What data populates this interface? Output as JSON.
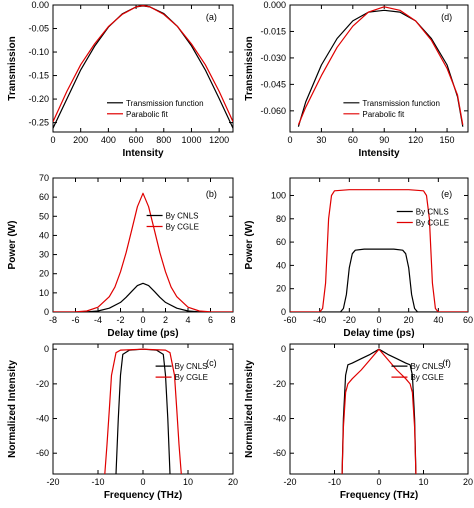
{
  "chart_data": [
    {
      "panel": "(a)",
      "type": "line",
      "xlabel": "Intensity",
      "ylabel": "Transmission",
      "xlim": [
        0,
        1300
      ],
      "ylim": [
        -0.27,
        0.0
      ],
      "xticks": [
        0,
        200,
        400,
        600,
        800,
        1000,
        1200
      ],
      "xtick_labels": [
        "0",
        "200",
        "400",
        "600",
        "800",
        "1000",
        "1200"
      ],
      "yticks": [
        0.0,
        -0.05,
        -0.1,
        -0.15,
        -0.2,
        -0.25
      ],
      "ytick_labels": [
        "0.00",
        "-0.05",
        "-0.10",
        "-0.15",
        "-0.20",
        "-0.25"
      ],
      "legend_position": "lower-center",
      "series": [
        {
          "name": "Transmission function",
          "color": "#000000",
          "x": [
            0,
            100,
            200,
            300,
            400,
            500,
            600,
            650,
            700,
            800,
            900,
            1000,
            1100,
            1200,
            1300
          ],
          "y": [
            -0.262,
            -0.2,
            -0.138,
            -0.088,
            -0.047,
            -0.019,
            -0.004,
            -0.002,
            -0.004,
            -0.018,
            -0.046,
            -0.087,
            -0.138,
            -0.199,
            -0.262
          ]
        },
        {
          "name": "Parabolic fit",
          "color": "#e00000",
          "x": [
            0,
            100,
            200,
            300,
            400,
            500,
            600,
            650,
            700,
            800,
            900,
            1000,
            1100,
            1200,
            1300
          ],
          "y": [
            -0.248,
            -0.184,
            -0.127,
            -0.083,
            -0.046,
            -0.02,
            -0.004,
            -0.001,
            -0.004,
            -0.02,
            -0.046,
            -0.083,
            -0.127,
            -0.184,
            -0.248
          ]
        }
      ]
    },
    {
      "panel": "(d)",
      "type": "line",
      "xlabel": "Intensity",
      "ylabel": "Transmission",
      "xlim": [
        0,
        170
      ],
      "ylim": [
        -0.072,
        0.0
      ],
      "xticks": [
        0,
        30,
        60,
        90,
        120,
        150
      ],
      "xtick_labels": [
        "0",
        "30",
        "60",
        "90",
        "120",
        "150"
      ],
      "yticks": [
        0.0,
        -0.015,
        -0.03,
        -0.045,
        -0.06
      ],
      "ytick_labels": [
        "0.000",
        "-0.015",
        "-0.030",
        "-0.045",
        "-0.060"
      ],
      "legend_position": "lower-center",
      "series": [
        {
          "name": "Transmission function",
          "color": "#000000",
          "x": [
            8,
            15,
            30,
            45,
            60,
            75,
            90,
            105,
            120,
            135,
            150,
            160,
            165
          ],
          "y": [
            -0.069,
            -0.055,
            -0.034,
            -0.019,
            -0.009,
            -0.004,
            -0.003,
            -0.004,
            -0.009,
            -0.019,
            -0.034,
            -0.052,
            -0.069
          ]
        },
        {
          "name": "Parabolic fit",
          "color": "#e00000",
          "x": [
            8,
            15,
            30,
            45,
            60,
            75,
            90,
            105,
            120,
            135,
            150,
            160,
            165
          ],
          "y": [
            -0.068,
            -0.058,
            -0.04,
            -0.024,
            -0.012,
            -0.004,
            -0.001,
            -0.003,
            -0.009,
            -0.02,
            -0.036,
            -0.051,
            -0.068
          ]
        }
      ]
    },
    {
      "panel": "(b)",
      "type": "line",
      "xlabel": "Delay time (ps)",
      "ylabel": "Power (W)",
      "xlim": [
        -8,
        8
      ],
      "ylim": [
        0,
        70
      ],
      "xticks": [
        -8,
        -6,
        -4,
        -2,
        0,
        2,
        4,
        6,
        8
      ],
      "xtick_labels": [
        "-8",
        "-6",
        "-4",
        "-2",
        "0",
        "2",
        "4",
        "6",
        "8"
      ],
      "yticks": [
        0,
        10,
        20,
        30,
        40,
        50,
        60,
        70
      ],
      "ytick_labels": [
        "0",
        "10",
        "20",
        "30",
        "40",
        "50",
        "60",
        "70"
      ],
      "legend_position": "right",
      "series": [
        {
          "name": "By CNLS",
          "color": "#000000",
          "x": [
            -8,
            -6,
            -5,
            -4,
            -3,
            -2,
            -1.5,
            -1,
            -0.5,
            0,
            0.5,
            1,
            1.5,
            2,
            3,
            4,
            5,
            6,
            8
          ],
          "y": [
            0,
            0,
            0.1,
            0.5,
            2,
            5,
            7.7,
            10.8,
            13.8,
            15.0,
            13.8,
            10.8,
            7.7,
            5,
            2,
            0.5,
            0.1,
            0,
            0
          ]
        },
        {
          "name": "By CGLE",
          "color": "#e00000",
          "x": [
            -8,
            -6,
            -5,
            -4,
            -3,
            -2.5,
            -2,
            -1.5,
            -1,
            -0.5,
            0,
            0.5,
            1,
            1.5,
            2,
            2.5,
            3,
            4,
            5,
            6,
            8
          ],
          "y": [
            0,
            0.1,
            0.5,
            2.5,
            8,
            13,
            21,
            31,
            43,
            55,
            62,
            55,
            43,
            31,
            21,
            13,
            8,
            2.5,
            0.5,
            0.1,
            0
          ]
        }
      ]
    },
    {
      "panel": "(e)",
      "type": "line",
      "xlabel": "Delay time (ps)",
      "ylabel": "Power (W)",
      "xlim": [
        -60,
        60
      ],
      "ylim": [
        0,
        115
      ],
      "xticks": [
        -60,
        -40,
        -20,
        0,
        20,
        40,
        60
      ],
      "xtick_labels": [
        "-60",
        "-40",
        "-20",
        "0",
        "20",
        "40",
        "60"
      ],
      "yticks": [
        0,
        20,
        40,
        60,
        80,
        100
      ],
      "ytick_labels": [
        "0",
        "20",
        "40",
        "60",
        "80",
        "100"
      ],
      "legend_position": "right",
      "series": [
        {
          "name": "By CNLS",
          "color": "#000000",
          "x": [
            -60,
            -26,
            -24,
            -22,
            -20,
            -18,
            -16,
            -10,
            0,
            10,
            16,
            18,
            20,
            22,
            24,
            26,
            60
          ],
          "y": [
            0,
            0,
            3,
            15,
            38,
            50,
            53,
            54,
            54,
            54,
            53,
            50,
            38,
            15,
            3,
            0,
            0
          ]
        },
        {
          "name": "By CGLE",
          "color": "#e00000",
          "x": [
            -60,
            -40,
            -38,
            -36,
            -34,
            -32,
            -30,
            -20,
            0,
            20,
            30,
            32,
            34,
            36,
            38,
            40,
            60
          ],
          "y": [
            0,
            0,
            3,
            25,
            80,
            100,
            104,
            105,
            105,
            105,
            104,
            100,
            80,
            25,
            3,
            0,
            0
          ]
        }
      ]
    },
    {
      "panel": "(c)",
      "type": "line",
      "xlabel": "Frequency (THz)",
      "ylabel": "Normalized Intensity",
      "xlim": [
        -20,
        20
      ],
      "ylim": [
        -72,
        3
      ],
      "xticks": [
        -20,
        -10,
        0,
        10,
        20
      ],
      "xtick_labels": [
        "-20",
        "-10",
        "0",
        "10",
        "20"
      ],
      "yticks": [
        0,
        -20,
        -40,
        -60
      ],
      "ytick_labels": [
        "0",
        "-20",
        "-40",
        "-60"
      ],
      "legend_position": "right",
      "series": [
        {
          "name": "By CNLS",
          "color": "#000000",
          "x": [
            -6,
            -5.5,
            -5,
            -4.5,
            -3,
            0,
            3,
            4.5,
            5,
            5.5,
            6
          ],
          "y": [
            -72,
            -40,
            -15,
            -3,
            -0.5,
            0,
            -0.5,
            -3,
            -15,
            -40,
            -72
          ]
        },
        {
          "name": "By CGLE",
          "color": "#e00000",
          "x": [
            -8.5,
            -8,
            -7.5,
            -7,
            -6,
            -5,
            0,
            5,
            6,
            7,
            7.5,
            8,
            8.5
          ],
          "y": [
            -72,
            -55,
            -35,
            -15,
            -2,
            -0.5,
            0,
            -0.5,
            -2,
            -15,
            -35,
            -55,
            -72
          ]
        }
      ]
    },
    {
      "panel": "(f)",
      "type": "line",
      "xlabel": "Frequency (THz)",
      "ylabel": "Normalized Intensity",
      "xlim": [
        -20,
        20
      ],
      "ylim": [
        -72,
        3
      ],
      "xticks": [
        -20,
        -10,
        0,
        10,
        20
      ],
      "xtick_labels": [
        "-20",
        "-10",
        "0",
        "10",
        "20"
      ],
      "yticks": [
        0,
        -20,
        -40,
        -60
      ],
      "ytick_labels": [
        "0",
        "-20",
        "-40",
        "-60"
      ],
      "legend_position": "right",
      "series": [
        {
          "name": "By CNLS",
          "color": "#000000",
          "x": [
            -8.3,
            -8,
            -7.5,
            -7,
            -6,
            -4,
            -2,
            0,
            2,
            4,
            6,
            7,
            7.5,
            8,
            8.3
          ],
          "y": [
            -72,
            -40,
            -15,
            -9,
            -8,
            -5.5,
            -3,
            0,
            -3,
            -5.5,
            -8,
            -9,
            -15,
            -40,
            -72
          ]
        },
        {
          "name": "By CGLE",
          "color": "#e00000",
          "x": [
            -8.3,
            -8,
            -7.5,
            -7,
            -6,
            -4,
            -2,
            0,
            2,
            4,
            6,
            7,
            7.5,
            8,
            8.3
          ],
          "y": [
            -72,
            -45,
            -25,
            -20,
            -17,
            -12,
            -6,
            0,
            -6,
            -12,
            -17,
            -20,
            -25,
            -45,
            -72
          ]
        }
      ]
    }
  ]
}
